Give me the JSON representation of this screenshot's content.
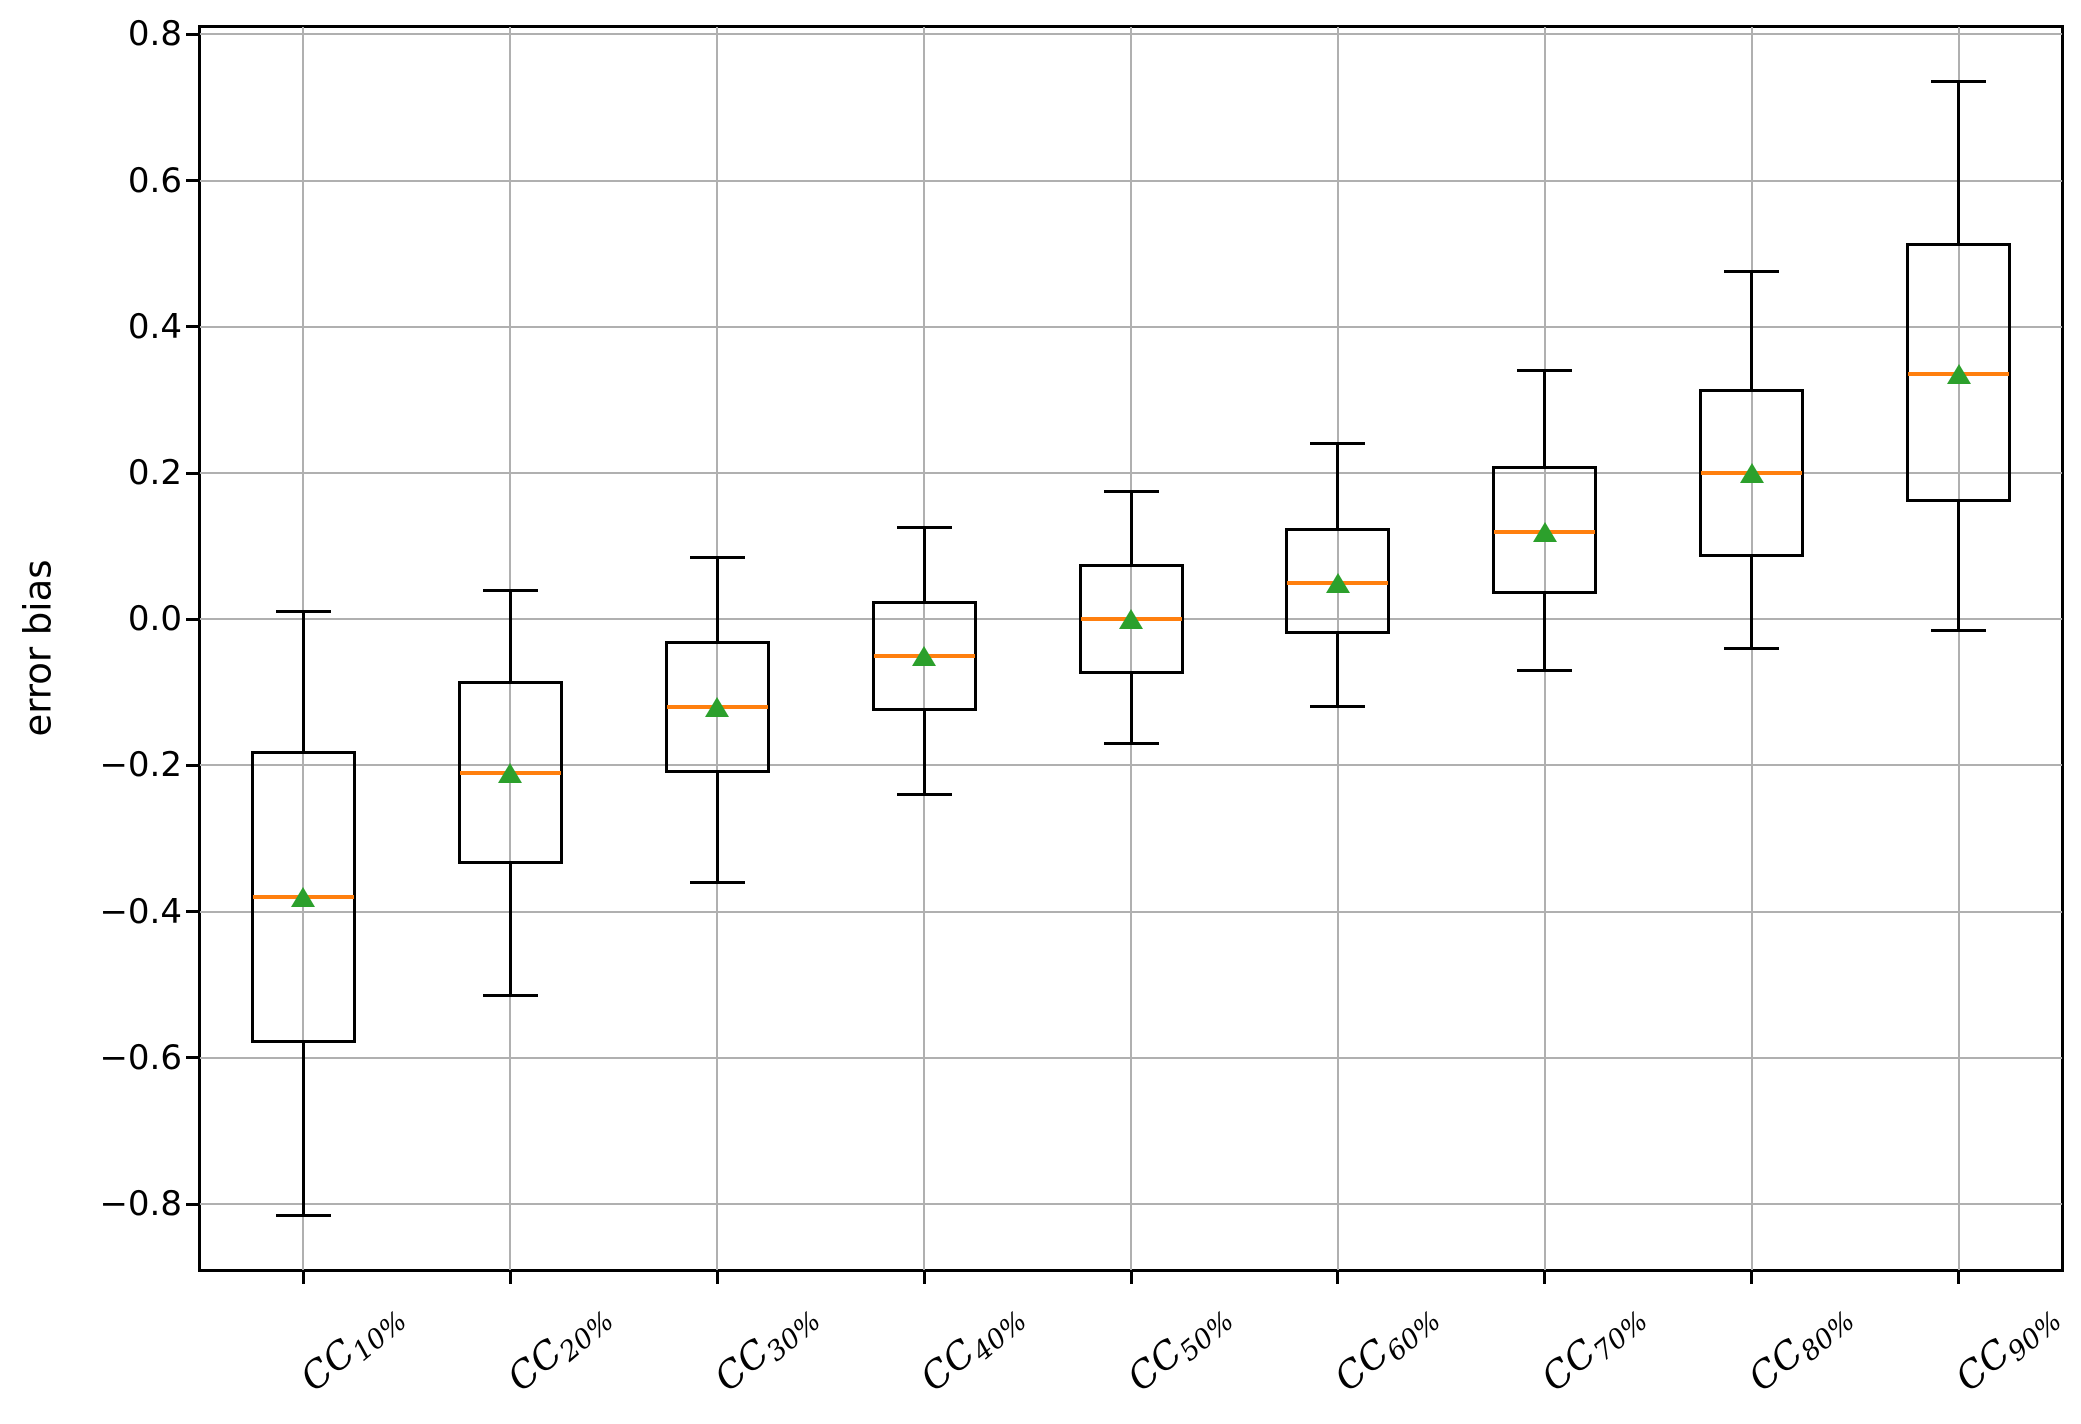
{
  "chart_data": {
    "type": "boxplot",
    "title": "",
    "xlabel": "",
    "ylabel": "error bias",
    "ylim": [
      -0.89,
      0.81
    ],
    "grid": true,
    "legend": "none",
    "ytick_values": [
      0.8,
      0.6,
      0.4,
      0.2,
      0.0,
      -0.2,
      -0.4,
      -0.6,
      -0.8
    ],
    "ytick_labels": [
      "0.8",
      "0.6",
      "0.4",
      "0.2",
      "0.0",
      "−0.2",
      "−0.4",
      "−0.6",
      "−0.8"
    ],
    "categories": [
      {
        "label": "CC10%",
        "prefix": "CC",
        "sub": "10%"
      },
      {
        "label": "CC20%",
        "prefix": "CC",
        "sub": "20%"
      },
      {
        "label": "CC30%",
        "prefix": "CC",
        "sub": "30%"
      },
      {
        "label": "CC40%",
        "prefix": "CC",
        "sub": "40%"
      },
      {
        "label": "CC50%",
        "prefix": "CC",
        "sub": "50%"
      },
      {
        "label": "CC60%",
        "prefix": "CC",
        "sub": "60%"
      },
      {
        "label": "CC70%",
        "prefix": "CC",
        "sub": "70%"
      },
      {
        "label": "CC80%",
        "prefix": "CC",
        "sub": "80%"
      },
      {
        "label": "CC90%",
        "prefix": "CC",
        "sub": "90%"
      }
    ],
    "series": [
      {
        "name": "CC10%",
        "whisker_low": -0.815,
        "q1": -0.58,
        "median": -0.38,
        "mean": -0.38,
        "q3": -0.18,
        "whisker_high": 0.01
      },
      {
        "name": "CC20%",
        "whisker_low": -0.515,
        "q1": -0.335,
        "median": -0.21,
        "mean": -0.21,
        "q3": -0.085,
        "whisker_high": 0.04
      },
      {
        "name": "CC30%",
        "whisker_low": -0.36,
        "q1": -0.21,
        "median": -0.12,
        "mean": -0.12,
        "q3": -0.03,
        "whisker_high": 0.085
      },
      {
        "name": "CC40%",
        "whisker_low": -0.24,
        "q1": -0.125,
        "median": -0.05,
        "mean": -0.05,
        "q3": 0.025,
        "whisker_high": 0.125
      },
      {
        "name": "CC50%",
        "whisker_low": -0.17,
        "q1": -0.075,
        "median": 0.0,
        "mean": 0.0,
        "q3": 0.075,
        "whisker_high": 0.175
      },
      {
        "name": "CC60%",
        "whisker_low": -0.12,
        "q1": -0.02,
        "median": 0.05,
        "mean": 0.05,
        "q3": 0.125,
        "whisker_high": 0.24
      },
      {
        "name": "CC70%",
        "whisker_low": -0.07,
        "q1": 0.035,
        "median": 0.12,
        "mean": 0.12,
        "q3": 0.21,
        "whisker_high": 0.34
      },
      {
        "name": "CC80%",
        "whisker_low": -0.04,
        "q1": 0.085,
        "median": 0.2,
        "mean": 0.2,
        "q3": 0.315,
        "whisker_high": 0.475
      },
      {
        "name": "CC90%",
        "whisker_low": -0.015,
        "q1": 0.16,
        "median": 0.335,
        "mean": 0.335,
        "q3": 0.515,
        "whisker_high": 0.735
      }
    ],
    "colors": {
      "box_line": "#000000",
      "median": "#ff7f0e",
      "mean_marker": "#2ca02c",
      "grid": "#b0b0b0",
      "background": "#ffffff"
    }
  }
}
